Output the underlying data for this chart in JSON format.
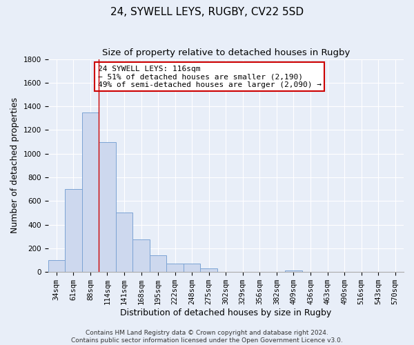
{
  "title": "24, SYWELL LEYS, RUGBY, CV22 5SD",
  "subtitle": "Size of property relative to detached houses in Rugby",
  "xlabel": "Distribution of detached houses by size in Rugby",
  "ylabel": "Number of detached properties",
  "bar_labels": [
    "34sqm",
    "61sqm",
    "88sqm",
    "114sqm",
    "141sqm",
    "168sqm",
    "195sqm",
    "222sqm",
    "248sqm",
    "275sqm",
    "302sqm",
    "329sqm",
    "356sqm",
    "382sqm",
    "409sqm",
    "436sqm",
    "463sqm",
    "490sqm",
    "516sqm",
    "543sqm",
    "570sqm"
  ],
  "bar_values": [
    100,
    700,
    1350,
    1100,
    500,
    275,
    140,
    70,
    70,
    30,
    0,
    0,
    0,
    0,
    15,
    0,
    0,
    0,
    0,
    0,
    0
  ],
  "bar_color": "#cdd8ee",
  "bar_edgecolor": "#7ba3d4",
  "ylim": [
    0,
    1800
  ],
  "yticks": [
    0,
    200,
    400,
    600,
    800,
    1000,
    1200,
    1400,
    1600,
    1800
  ],
  "vline_x": 3.0,
  "vline_color": "#cc0000",
  "annotation_line1": "24 SYWELL LEYS: 116sqm",
  "annotation_line2": "← 51% of detached houses are smaller (2,190)",
  "annotation_line3": "49% of semi-detached houses are larger (2,090) →",
  "footer_text": "Contains HM Land Registry data © Crown copyright and database right 2024.\nContains public sector information licensed under the Open Government Licence v3.0.",
  "background_color": "#e8eef8",
  "grid_color": "#ffffff",
  "title_fontsize": 11,
  "subtitle_fontsize": 9.5,
  "axis_label_fontsize": 9,
  "tick_fontsize": 7.5,
  "footer_fontsize": 6.5,
  "annotation_fontsize": 8
}
